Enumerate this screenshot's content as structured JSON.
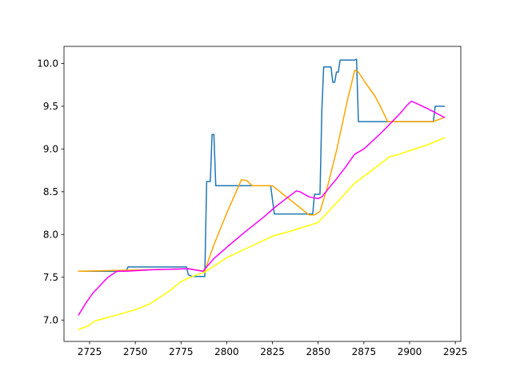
{
  "chart_data": {
    "type": "line",
    "title": "",
    "xlabel": "",
    "ylabel": "",
    "xlim": [
      2711,
      2928
    ],
    "ylim": [
      6.75,
      10.2
    ],
    "xticks": [
      2725,
      2750,
      2775,
      2800,
      2825,
      2850,
      2875,
      2900,
      2925
    ],
    "yticks": [
      7.0,
      7.5,
      8.0,
      8.5,
      9.0,
      9.5,
      10.0
    ],
    "xtick_labels": [
      "2725",
      "2750",
      "2775",
      "2800",
      "2825",
      "2850",
      "2875",
      "2900",
      "2925"
    ],
    "ytick_labels": [
      "7.0",
      "7.5",
      "8.0",
      "8.5",
      "9.0",
      "9.5",
      "10.0"
    ],
    "grid": false,
    "legend": false,
    "series": [
      {
        "color": "#1f77b4",
        "points": [
          [
            2719,
            7.57
          ],
          [
            2745,
            7.57
          ],
          [
            2746,
            7.62
          ],
          [
            2778,
            7.62
          ],
          [
            2779,
            7.53
          ],
          [
            2781,
            7.51
          ],
          [
            2788,
            7.51
          ],
          [
            2789,
            8.62
          ],
          [
            2791,
            8.62
          ],
          [
            2792,
            9.17
          ],
          [
            2793,
            9.17
          ],
          [
            2794,
            8.57
          ],
          [
            2824,
            8.57
          ],
          [
            2826,
            8.24
          ],
          [
            2847,
            8.24
          ],
          [
            2848,
            8.47
          ],
          [
            2851,
            8.47
          ],
          [
            2852,
            9.45
          ],
          [
            2853,
            9.96
          ],
          [
            2857,
            9.96
          ],
          [
            2858,
            9.78
          ],
          [
            2859,
            9.78
          ],
          [
            2860,
            9.9
          ],
          [
            2861,
            9.9
          ],
          [
            2862,
            10.04
          ],
          [
            2870,
            10.04
          ],
          [
            2871,
            10.05
          ],
          [
            2872,
            9.32
          ],
          [
            2913,
            9.32
          ],
          [
            2914,
            9.5
          ],
          [
            2919,
            9.5
          ]
        ]
      },
      {
        "color": "#ffa500",
        "points": [
          [
            2719,
            7.57
          ],
          [
            2779,
            7.6
          ],
          [
            2788,
            7.57
          ],
          [
            2790,
            7.7
          ],
          [
            2793,
            7.88
          ],
          [
            2800,
            8.25
          ],
          [
            2808,
            8.64
          ],
          [
            2811,
            8.63
          ],
          [
            2814,
            8.57
          ],
          [
            2825,
            8.57
          ],
          [
            2845,
            8.23
          ],
          [
            2848,
            8.23
          ],
          [
            2851,
            8.27
          ],
          [
            2855,
            8.55
          ],
          [
            2860,
            8.98
          ],
          [
            2866,
            9.57
          ],
          [
            2870,
            9.92
          ],
          [
            2872,
            9.9
          ],
          [
            2876,
            9.77
          ],
          [
            2881,
            9.62
          ],
          [
            2884,
            9.5
          ],
          [
            2888,
            9.32
          ],
          [
            2913,
            9.32
          ],
          [
            2919,
            9.37
          ]
        ]
      },
      {
        "color": "#ff00ff",
        "points": [
          [
            2719,
            7.06
          ],
          [
            2723,
            7.2
          ],
          [
            2727,
            7.32
          ],
          [
            2735,
            7.5
          ],
          [
            2740,
            7.57
          ],
          [
            2745,
            7.57
          ],
          [
            2760,
            7.59
          ],
          [
            2779,
            7.6
          ],
          [
            2787,
            7.57
          ],
          [
            2793,
            7.72
          ],
          [
            2800,
            7.85
          ],
          [
            2810,
            8.03
          ],
          [
            2820,
            8.2
          ],
          [
            2827,
            8.33
          ],
          [
            2838,
            8.51
          ],
          [
            2840,
            8.5
          ],
          [
            2845,
            8.44
          ],
          [
            2850,
            8.42
          ],
          [
            2852,
            8.44
          ],
          [
            2855,
            8.52
          ],
          [
            2860,
            8.65
          ],
          [
            2865,
            8.79
          ],
          [
            2870,
            8.94
          ],
          [
            2875,
            9.0
          ],
          [
            2880,
            9.1
          ],
          [
            2885,
            9.2
          ],
          [
            2890,
            9.31
          ],
          [
            2895,
            9.42
          ],
          [
            2899,
            9.52
          ],
          [
            2901,
            9.56
          ],
          [
            2903,
            9.54
          ],
          [
            2910,
            9.47
          ],
          [
            2919,
            9.37
          ]
        ]
      },
      {
        "color": "#ffff00",
        "points": [
          [
            2719,
            6.89
          ],
          [
            2724,
            6.93
          ],
          [
            2728,
            6.99
          ],
          [
            2740,
            7.06
          ],
          [
            2750,
            7.12
          ],
          [
            2758,
            7.19
          ],
          [
            2768,
            7.33
          ],
          [
            2775,
            7.45
          ],
          [
            2780,
            7.5
          ],
          [
            2788,
            7.56
          ],
          [
            2800,
            7.73
          ],
          [
            2810,
            7.83
          ],
          [
            2825,
            7.98
          ],
          [
            2835,
            8.04
          ],
          [
            2850,
            8.14
          ],
          [
            2860,
            8.37
          ],
          [
            2870,
            8.6
          ],
          [
            2880,
            8.76
          ],
          [
            2889,
            8.91
          ],
          [
            2893,
            8.93
          ],
          [
            2900,
            8.98
          ],
          [
            2910,
            9.05
          ],
          [
            2919,
            9.13
          ]
        ]
      }
    ]
  }
}
